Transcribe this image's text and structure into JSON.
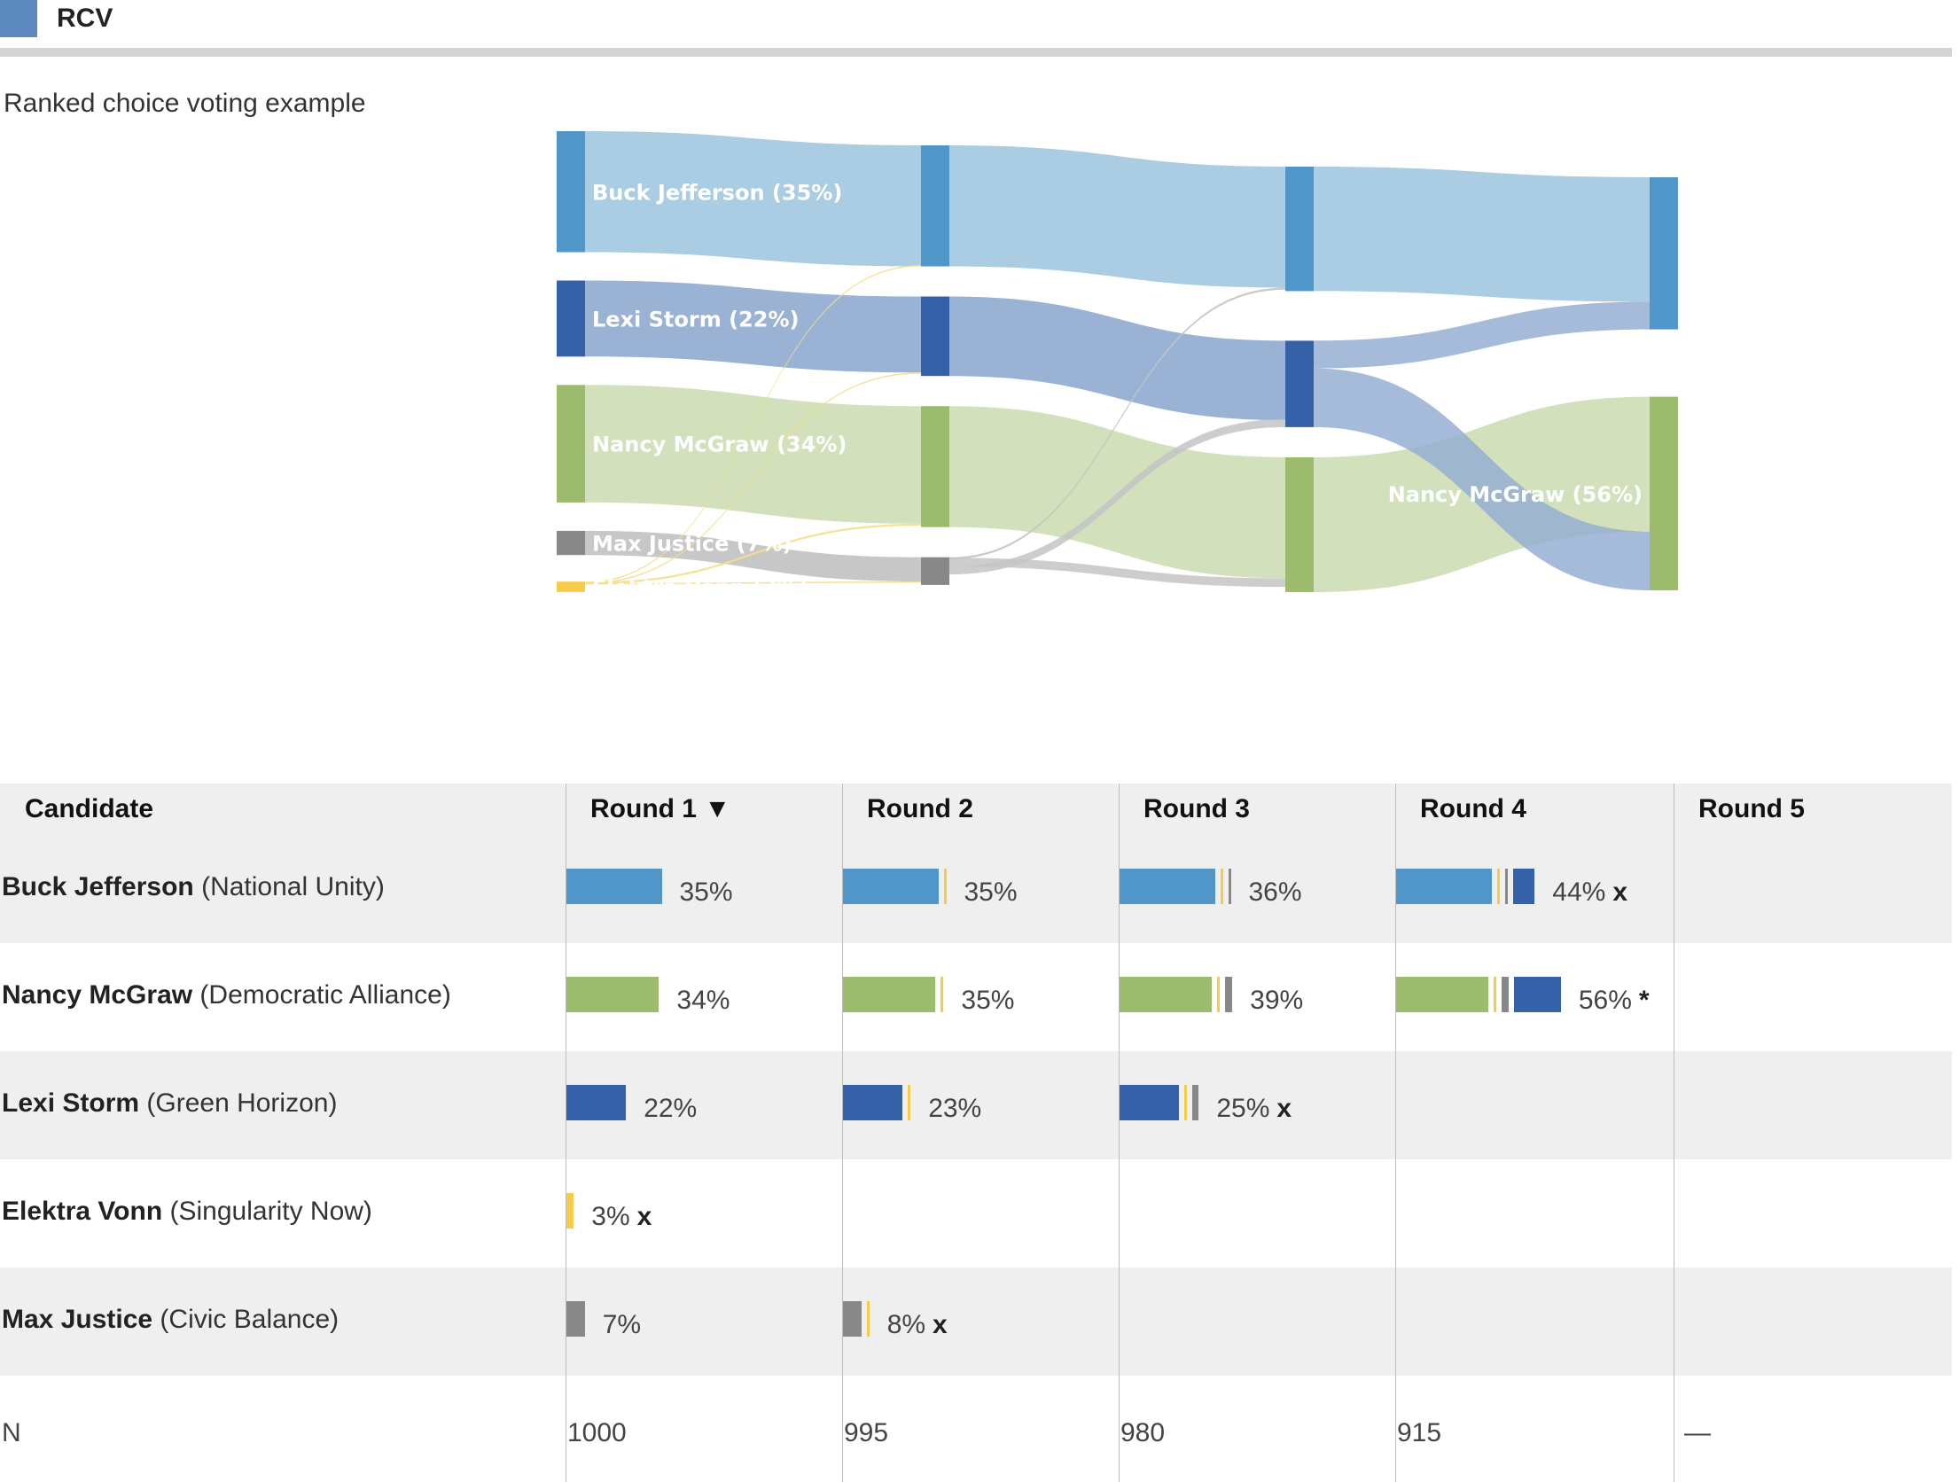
{
  "header": {
    "legend_label": "RCV",
    "legend_color": "#5b89bd"
  },
  "chart_data": {
    "type": "sankey",
    "title": "Ranked choice voting example",
    "rounds": [
      "Round 1",
      "Round 2",
      "Round 3",
      "Round 4",
      "Round 5"
    ],
    "sort_column": "Round 1",
    "sort_indicator": "▼",
    "candidates": [
      {
        "key": "buck",
        "name": "Buck Jefferson",
        "party": "(National Unity)",
        "color": "#5096c8",
        "light_color": "#a6cae2",
        "pct": [
          35,
          35,
          36,
          44,
          null
        ],
        "status": [
          null,
          null,
          null,
          "x",
          null
        ]
      },
      {
        "key": "nancy",
        "name": "Nancy McGraw",
        "party": "(Democratic Alliance)",
        "color": "#9dbb6c",
        "light_color": "#d0dfb7",
        "pct": [
          34,
          35,
          39,
          56,
          null
        ],
        "status": [
          null,
          null,
          null,
          "*",
          null
        ]
      },
      {
        "key": "lexi",
        "name": "Lexi Storm",
        "party": "(Green Horizon)",
        "color": "#3461a8",
        "light_color": "#95afd2",
        "pct": [
          22,
          23,
          25,
          null,
          null
        ],
        "status": [
          null,
          null,
          "x",
          null,
          null
        ]
      },
      {
        "key": "elektra",
        "name": "Elektra Vonn",
        "party": "(Singularity Now)",
        "color": "#f5cb48",
        "light_color": "#f5df8a",
        "pct": [
          3,
          null,
          null,
          null,
          null
        ],
        "status": [
          "x",
          null,
          null,
          null,
          null
        ]
      },
      {
        "key": "max",
        "name": "Max Justice",
        "party": "(Civic Balance)",
        "color": "#888888",
        "light_color": "#c4c4c4",
        "pct": [
          7,
          8,
          null,
          null,
          null
        ],
        "status": [
          null,
          "x",
          null,
          null,
          null
        ]
      }
    ],
    "node_labels": [
      {
        "text": "Buck Jefferson (35%)",
        "stage": 0,
        "cand": "buck"
      },
      {
        "text": "Lexi Storm (22%)",
        "stage": 0,
        "cand": "lexi"
      },
      {
        "text": "Nancy McGraw (34%)",
        "stage": 0,
        "cand": "nancy"
      },
      {
        "text": "Max Justice (7%)",
        "stage": 0,
        "cand": "max"
      },
      {
        "text": "Elektra Vonn (3%)",
        "stage": 0,
        "cand": "elektra"
      },
      {
        "text": "Nancy McGraw (56%)",
        "stage": 3,
        "cand": "nancy"
      }
    ],
    "transfers": [
      {
        "round": 2,
        "to": "buck",
        "from": [
          [
            "elektra",
            0.3
          ]
        ]
      },
      {
        "round": 2,
        "to": "nancy",
        "from": [
          [
            "elektra",
            0.6
          ]
        ]
      },
      {
        "round": 2,
        "to": "lexi",
        "from": [
          [
            "elektra",
            0.3
          ]
        ]
      },
      {
        "round": 2,
        "to": "max",
        "from": [
          [
            "elektra",
            0.4
          ]
        ]
      },
      {
        "round": 3,
        "to": "buck",
        "from": [
          [
            "max",
            0.6
          ]
        ]
      },
      {
        "round": 3,
        "to": "nancy",
        "from": [
          [
            "max",
            2.5
          ]
        ]
      },
      {
        "round": 3,
        "to": "lexi",
        "from": [
          [
            "max",
            2.3
          ]
        ]
      },
      {
        "round": 4,
        "to": "buck",
        "from": [
          [
            "lexi",
            8.0
          ]
        ]
      },
      {
        "round": 4,
        "to": "nancy",
        "from": [
          [
            "lexi",
            17.0
          ]
        ]
      }
    ],
    "n_label": "N",
    "n_values": [
      "1000",
      "995",
      "980",
      "915",
      "—"
    ]
  },
  "table": {
    "candidate_header": "Candidate"
  }
}
